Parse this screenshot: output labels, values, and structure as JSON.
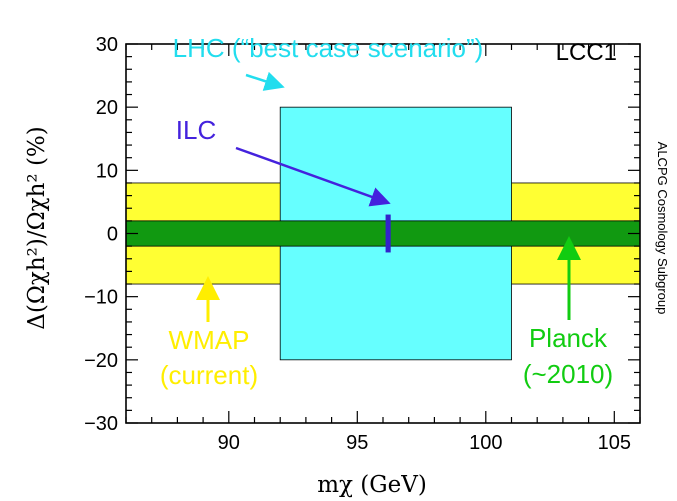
{
  "chart_data": {
    "type": "bar",
    "xlabel": "mχ (GeV)",
    "ylabel": "Δ(Ωχh²)/Ωχh² (%)",
    "xlim": [
      86,
      106
    ],
    "ylim": [
      -30,
      30
    ],
    "x_ticks": [
      90,
      95,
      100,
      105
    ],
    "y_ticks": [
      -30,
      -20,
      -10,
      0,
      10,
      20,
      30
    ],
    "grid": false,
    "tag": "LCC1",
    "side_label": "ALCPG Cosmology Subgroup",
    "bands": [
      {
        "name": "WMAP",
        "note": "(current)",
        "x_range": [
          86,
          106
        ],
        "y_range": [
          -8,
          8
        ],
        "color": "#ffff33"
      },
      {
        "name": "LHC (“best case scenario”)",
        "x_range": [
          92,
          101
        ],
        "y_range": [
          -20,
          20
        ],
        "color": "#66ffff"
      },
      {
        "name": "Planck",
        "note": "(~2010)",
        "x_range": [
          86,
          106
        ],
        "y_range": [
          -2,
          2
        ],
        "color": "#119911"
      },
      {
        "name": "ILC",
        "x_range": [
          96.1,
          96.3
        ],
        "y_range": [
          -3,
          3
        ],
        "color": "#3322cc"
      }
    ],
    "colors": {
      "wmap_label": "#ffee00",
      "planck_label": "#11cc11",
      "lhc_label": "#22ddee",
      "ilc_label": "#4422dd"
    }
  }
}
